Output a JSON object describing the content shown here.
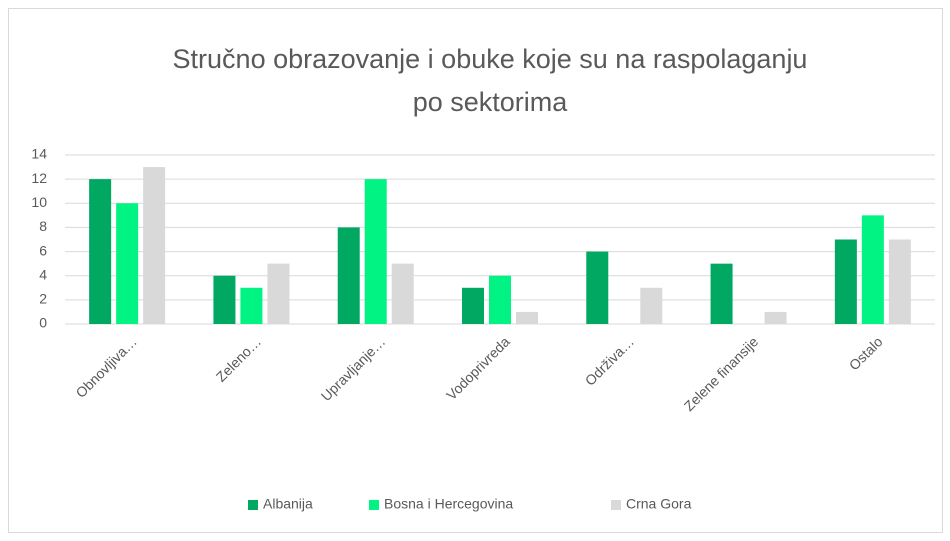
{
  "chart_data": {
    "type": "bar",
    "title": "Stručno obrazovanje i obuke koje su na raspolaganju po sektorima",
    "categories": [
      "Obnovljiva…",
      "Zeleno…",
      "Upravljanje…",
      "Vodoprivreda",
      "Održiva…",
      "Zelene finansije",
      "Ostalo"
    ],
    "series": [
      {
        "name": "Albanija",
        "color": "#00a862",
        "values": [
          12,
          4,
          8,
          3,
          6,
          5,
          7
        ]
      },
      {
        "name": "Bosna i Hercegovina",
        "color": "#00f383",
        "values": [
          10,
          3,
          12,
          4,
          0,
          0,
          9
        ]
      },
      {
        "name": "Crna Gora",
        "color": "#d9d9d9",
        "values": [
          13,
          5,
          5,
          1,
          3,
          1,
          7
        ]
      }
    ],
    "ylim": [
      0,
      14
    ],
    "yticks": [
      0,
      2,
      4,
      6,
      8,
      10,
      12,
      14
    ],
    "grid": true,
    "legend": "bottom"
  }
}
